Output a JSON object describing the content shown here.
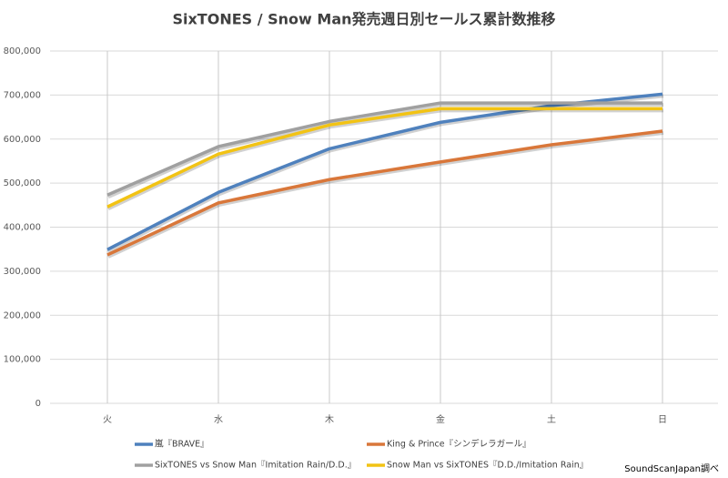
{
  "chart_data": {
    "type": "line",
    "title": "SixTONES / Snow Man発売週日別セールス累計数推移",
    "categories": [
      "火",
      "水",
      "木",
      "金",
      "土",
      "日"
    ],
    "series": [
      {
        "name": "嵐『BRAVE』",
        "color": "#4f81bd",
        "values": [
          349000,
          479000,
          578000,
          638000,
          676000,
          702000
        ]
      },
      {
        "name": "King & Prince『シンデレラガール』",
        "color": "#d9773a",
        "values": [
          337000,
          455000,
          508000,
          548000,
          587000,
          618000
        ]
      },
      {
        "name": "SixTONES vs Snow Man『Imitation Rain/D.D.』",
        "color": "#a0a0a0",
        "values": [
          473000,
          583000,
          640000,
          682000,
          682000,
          682000
        ]
      },
      {
        "name": "Snow Man vs SixTONES『D.D./Imitation Rain』",
        "color": "#f2c314",
        "values": [
          446000,
          566000,
          632000,
          669000,
          669000,
          669000
        ]
      }
    ],
    "ylim": [
      0,
      800000
    ],
    "yticks": [
      0,
      {
        "value": 100000,
        "label": "100,000"
      },
      {
        "value": 200000,
        "label": "200,000"
      },
      {
        "value": 300000,
        "label": "300,000"
      },
      {
        "value": 400000,
        "label": "400,000"
      },
      {
        "value": 500000,
        "label": "500,000"
      },
      {
        "value": 600000,
        "label": "600,000"
      },
      {
        "value": 700000,
        "label": "700,000"
      },
      {
        "value": 800000,
        "label": "800,000"
      }
    ],
    "grid": true,
    "legend": "bottom",
    "source": "SoundScanJapan調べ"
  }
}
